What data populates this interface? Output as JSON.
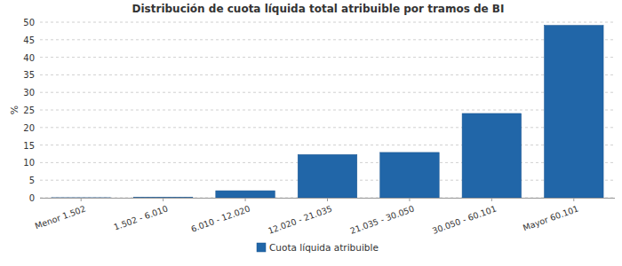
{
  "chart_data": {
    "type": "bar",
    "title": "Distribución de cuota líquida total atribuible por tramos de BI",
    "y_label": "%",
    "categories": [
      "Menor 1.502",
      "1.502 - 6.010",
      "6.010 - 12.020",
      "12.020 - 21.035",
      "21.035 - 30.050",
      "30.050 - 60.101",
      "Mayor 60.101"
    ],
    "series": [
      {
        "name": "Cuota líquida atribuible",
        "color": "#2166a8",
        "values": [
          0.02,
          0.1,
          2,
          12.3,
          12.9,
          24,
          49.1
        ]
      }
    ],
    "ylim": [
      0,
      50
    ],
    "yticks": [
      0,
      5,
      10,
      15,
      20,
      25,
      30,
      35,
      40,
      45,
      50
    ],
    "grid": true,
    "legend": "bottom"
  }
}
